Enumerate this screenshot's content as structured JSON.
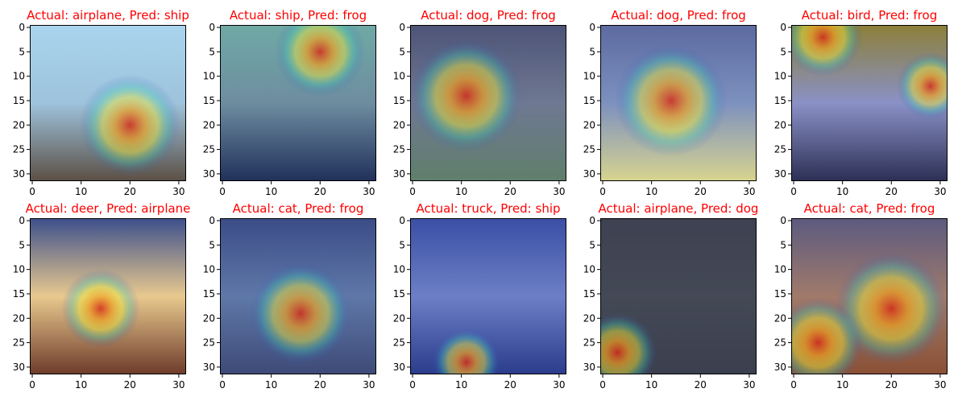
{
  "figure": {
    "title_color": "#ff0000",
    "cmap_overlay": "jet",
    "grid": false
  },
  "chart_data": [
    {
      "type": "heatmap",
      "title": "Actual: airplane, Pred: ship",
      "actual": "airplane",
      "pred": "ship",
      "xlim": [
        -0.5,
        31.5
      ],
      "ylim": [
        31.5,
        -0.5
      ],
      "xticks": [
        0,
        10,
        20,
        30
      ],
      "yticks": [
        0,
        5,
        10,
        15,
        20,
        25,
        30
      ],
      "hot": [
        [
          20,
          20,
          9
        ]
      ],
      "bg": [
        "#a9d4ee",
        "#9ec3dc",
        "#5b4f45"
      ]
    },
    {
      "type": "heatmap",
      "title": "Actual: ship, Pred: frog",
      "actual": "ship",
      "pred": "frog",
      "xlim": [
        -0.5,
        31.5
      ],
      "ylim": [
        31.5,
        -0.5
      ],
      "xticks": [
        0,
        10,
        20,
        30
      ],
      "yticks": [
        0,
        5,
        10,
        15,
        20,
        25,
        30
      ],
      "hot": [
        [
          20,
          5,
          8
        ]
      ],
      "bg": [
        "#6fa9a5",
        "#6e8da0",
        "#20305a"
      ]
    },
    {
      "type": "heatmap",
      "title": "Actual: dog, Pred: frog",
      "actual": "dog",
      "pred": "frog",
      "xlim": [
        -0.5,
        31.5
      ],
      "ylim": [
        31.5,
        -0.5
      ],
      "xticks": [
        0,
        10,
        20,
        30
      ],
      "yticks": [
        0,
        5,
        10,
        15,
        20,
        25,
        30
      ],
      "hot": [
        [
          11,
          14,
          10
        ]
      ],
      "bg": [
        "#4d5477",
        "#6f7892",
        "#5f7f6b"
      ]
    },
    {
      "type": "heatmap",
      "title": "Actual: dog, Pred: frog",
      "actual": "dog",
      "pred": "frog",
      "xlim": [
        -0.5,
        31.5
      ],
      "ylim": [
        31.5,
        -0.5
      ],
      "xticks": [
        0,
        10,
        20,
        30
      ],
      "yticks": [
        0,
        5,
        10,
        15,
        20,
        25,
        30
      ],
      "hot": [
        [
          14,
          15,
          10
        ]
      ],
      "bg": [
        "#5c6aa0",
        "#7d91bf",
        "#d8d48f"
      ]
    },
    {
      "type": "heatmap",
      "title": "Actual: bird, Pred: frog",
      "actual": "bird",
      "pred": "frog",
      "xlim": [
        -0.5,
        31.5
      ],
      "ylim": [
        31.5,
        -0.5
      ],
      "xticks": [
        0,
        10,
        20,
        30
      ],
      "yticks": [
        0,
        5,
        10,
        15,
        20,
        25,
        30
      ],
      "hot": [
        [
          6,
          2,
          7
        ],
        [
          28,
          12,
          6
        ]
      ],
      "bg": [
        "#8c7f38",
        "#8a91c6",
        "#2c2f55"
      ]
    },
    {
      "type": "heatmap",
      "title": "Actual: deer, Pred: airplane",
      "actual": "deer",
      "pred": "airplane",
      "xlim": [
        -0.5,
        31.5
      ],
      "ylim": [
        31.5,
        -0.5
      ],
      "xticks": [
        0,
        10,
        20,
        30
      ],
      "yticks": [
        0,
        5,
        10,
        15,
        20,
        25,
        30
      ],
      "hot": [
        [
          14,
          18,
          7
        ]
      ],
      "bg": [
        "#3c4f8c",
        "#e8c98e",
        "#6e3b2a"
      ]
    },
    {
      "type": "heatmap",
      "title": "Actual: cat, Pred: frog",
      "actual": "cat",
      "pred": "frog",
      "xlim": [
        -0.5,
        31.5
      ],
      "ylim": [
        31.5,
        -0.5
      ],
      "xticks": [
        0,
        10,
        20,
        30
      ],
      "yticks": [
        0,
        5,
        10,
        15,
        20,
        25,
        30
      ],
      "hot": [
        [
          16,
          19,
          9
        ]
      ],
      "bg": [
        "#3b4c86",
        "#5f78a8",
        "#3e4a78"
      ]
    },
    {
      "type": "heatmap",
      "title": "Actual: truck, Pred: ship",
      "actual": "truck",
      "pred": "ship",
      "xlim": [
        -0.5,
        31.5
      ],
      "ylim": [
        31.5,
        -0.5
      ],
      "xticks": [
        0,
        10,
        20,
        30
      ],
      "yticks": [
        0,
        5,
        10,
        15,
        20,
        25,
        30
      ],
      "hot": [
        [
          11,
          29,
          6
        ]
      ],
      "bg": [
        "#3a4fa5",
        "#6c7fc6",
        "#2b3c8c"
      ]
    },
    {
      "type": "heatmap",
      "title": "Actual: airplane, Pred: dog",
      "actual": "airplane",
      "pred": "dog",
      "xlim": [
        -0.5,
        31.5
      ],
      "ylim": [
        31.5,
        -0.5
      ],
      "xticks": [
        0,
        10,
        20,
        30
      ],
      "yticks": [
        0,
        5,
        10,
        15,
        20,
        25,
        30
      ],
      "hot": [
        [
          3,
          27,
          7
        ]
      ],
      "bg": [
        "#3d4151",
        "#444956",
        "#3b3f4e"
      ]
    },
    {
      "type": "heatmap",
      "title": "Actual: cat, Pred: frog",
      "actual": "cat",
      "pred": "frog",
      "xlim": [
        -0.5,
        31.5
      ],
      "ylim": [
        31.5,
        -0.5
      ],
      "xticks": [
        0,
        10,
        20,
        30
      ],
      "yticks": [
        0,
        5,
        10,
        15,
        20,
        25,
        30
      ],
      "hot": [
        [
          20,
          18,
          10
        ],
        [
          5,
          25,
          8
        ]
      ],
      "bg": [
        "#5c5a80",
        "#a07a6a",
        "#8a5035"
      ]
    }
  ]
}
